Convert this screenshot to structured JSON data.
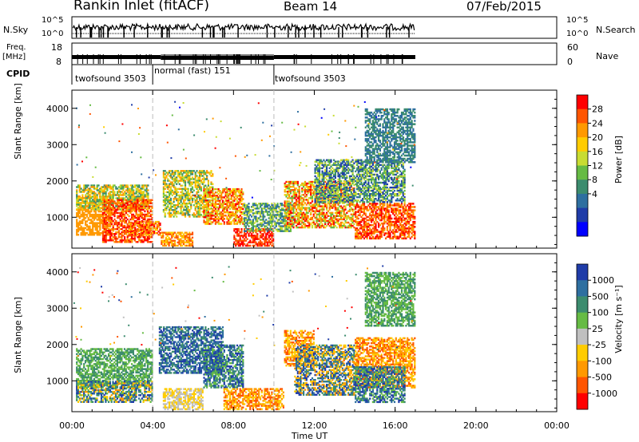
{
  "header": {
    "title": "Rankin Inlet (fitACF)",
    "beam": "Beam 14",
    "date": "07/Feb/2015"
  },
  "top_panels": {
    "nsky_label": "N.Sky",
    "nsearch_label": "N.Search",
    "noise_ticks": [
      "10^5",
      "10^0"
    ],
    "freq_label": "Freq.",
    "freq_unit": "[MHz]",
    "freq_ticks": [
      "18",
      "8"
    ],
    "nave_label": "Nave",
    "nave_ticks": [
      "60",
      "0"
    ],
    "cpid_label": "CPID",
    "modes": [
      {
        "name": "twofsound 3503",
        "start_h": 0,
        "end_h": 4
      },
      {
        "name": "normal (fast) 151",
        "start_h": 4,
        "end_h": 10
      },
      {
        "name": "twofsound 3503",
        "start_h": 10,
        "end_h": 17
      }
    ]
  },
  "chart_data": [
    {
      "type": "heatmap",
      "panel": "power",
      "xlabel": "Time UT",
      "ylabel": "Slant Range [km]",
      "x_ticks": [
        "00:00",
        "04:00",
        "08:00",
        "12:00",
        "16:00",
        "20:00",
        "00:00"
      ],
      "x_range_hours": [
        0,
        24
      ],
      "y_ticks": [
        1000,
        2000,
        3000,
        4000
      ],
      "y_range": [
        150,
        4500
      ],
      "colorbar_label": "Power [dB]",
      "colorbar_ticks": [
        28,
        24,
        20,
        16,
        12,
        8,
        4
      ],
      "colorbar_colors": [
        "#ff0000",
        "#ff5500",
        "#ff9900",
        "#ffcc00",
        "#c8dc32",
        "#66bb44",
        "#3c8c6e",
        "#2e6fa0",
        "#1f3ca8",
        "#0000ff"
      ],
      "data_extent_hours": [
        0,
        17
      ]
    },
    {
      "type": "heatmap",
      "panel": "velocity",
      "xlabel": "Time UT",
      "ylabel": "Slant Range [km]",
      "x_ticks": [
        "00:00",
        "04:00",
        "08:00",
        "12:00",
        "16:00",
        "20:00",
        "00:00"
      ],
      "x_range_hours": [
        0,
        24
      ],
      "y_ticks": [
        1000,
        2000,
        3000,
        4000
      ],
      "y_range": [
        150,
        4500
      ],
      "colorbar_label": "Velocity [m s⁻¹]",
      "colorbar_ticks": [
        1000,
        500,
        100,
        25,
        -25,
        -100,
        -500,
        -1000
      ],
      "colorbar_colors": [
        "#1f3ca8",
        "#2e6fa0",
        "#3c8c6e",
        "#66bb44",
        "#c0c0c0",
        "#ffcc00",
        "#ff9900",
        "#ff5500",
        "#ff0000"
      ],
      "data_extent_hours": [
        0,
        17
      ]
    }
  ]
}
